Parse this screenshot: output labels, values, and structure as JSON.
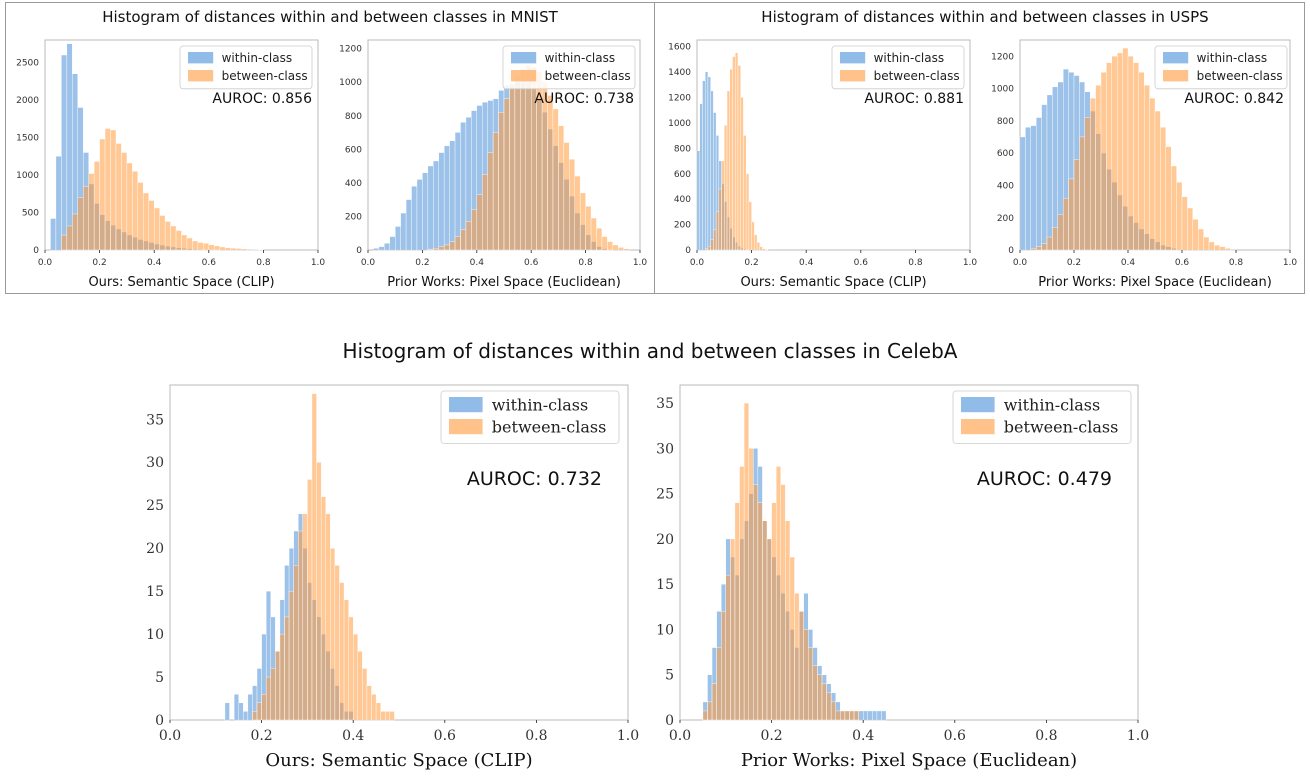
{
  "colors": {
    "within": "#4a90d9",
    "between": "#ff9a3c",
    "axis": "#222222",
    "tick_label": "#333333"
  },
  "chart_data": [
    {
      "type": "bar",
      "group_title": "Histogram of distances within and between classes in MNIST",
      "title": "",
      "xlabel": "Ours: Semantic Space (CLIP)",
      "ylabel": "",
      "xlim": [
        0,
        1
      ],
      "ylim": [
        0,
        2800
      ],
      "xticks": [
        0.0,
        0.2,
        0.4,
        0.6,
        0.8,
        1.0
      ],
      "xtick_labels": [
        "0.0",
        "0.2",
        "0.4",
        "0.6",
        "0.8",
        "1.0"
      ],
      "yticks": [
        0,
        500,
        1000,
        1500,
        2000,
        2500
      ],
      "ytick_labels": [
        "0",
        "500",
        "1000",
        "1500",
        "2000",
        "2500"
      ],
      "legend": {
        "placement": "top-right",
        "entries": [
          "within-class",
          "between-class"
        ]
      },
      "annotation": "AUROC: 0.856",
      "bin_width": 0.02,
      "x_start": 0.0,
      "series": [
        {
          "name": "within-class",
          "values": [
            0,
            420,
            1250,
            2600,
            2750,
            2350,
            1900,
            1300,
            880,
            620,
            470,
            390,
            330,
            280,
            240,
            200,
            170,
            140,
            120,
            100,
            80,
            65,
            50,
            40,
            30,
            22,
            16,
            12,
            8,
            5,
            3,
            2
          ]
        },
        {
          "name": "between-class",
          "values": [
            0,
            0,
            0,
            200,
            320,
            480,
            700,
            850,
            1020,
            1180,
            1480,
            1620,
            1600,
            1420,
            1300,
            1160,
            1050,
            900,
            760,
            660,
            560,
            460,
            380,
            320,
            260,
            200,
            160,
            120,
            100,
            90,
            70,
            55,
            40,
            30,
            25,
            20,
            15,
            10,
            8,
            6
          ]
        }
      ]
    },
    {
      "type": "bar",
      "title": "",
      "xlabel": "Prior Works: Pixel Space (Euclidean)",
      "ylabel": "",
      "xlim": [
        0,
        1
      ],
      "ylim": [
        0,
        1250
      ],
      "xticks": [
        0.0,
        0.2,
        0.4,
        0.6,
        0.8,
        1.0
      ],
      "xtick_labels": [
        "0.0",
        "0.2",
        "0.4",
        "0.6",
        "0.8",
        "1.0"
      ],
      "yticks": [
        0,
        200,
        400,
        600,
        800,
        1000,
        1200
      ],
      "ytick_labels": [
        "0",
        "200",
        "400",
        "600",
        "800",
        "1000",
        "1200"
      ],
      "legend": {
        "placement": "top-right",
        "entries": [
          "within-class",
          "between-class"
        ]
      },
      "annotation": "AUROC: 0.738",
      "bin_width": 0.02,
      "x_start": 0.0,
      "series": [
        {
          "name": "within-class",
          "values": [
            0,
            10,
            20,
            40,
            80,
            140,
            220,
            300,
            380,
            420,
            460,
            500,
            530,
            580,
            620,
            650,
            700,
            760,
            790,
            830,
            860,
            880,
            890,
            900,
            950,
            980,
            990,
            1000,
            1000,
            990,
            960,
            900,
            820,
            720,
            620,
            520,
            420,
            320,
            220,
            150,
            90,
            50,
            20,
            8,
            3
          ]
        },
        {
          "name": "between-class",
          "values": [
            0,
            0,
            0,
            0,
            0,
            0,
            0,
            0,
            0,
            0,
            0,
            5,
            10,
            20,
            30,
            50,
            80,
            120,
            170,
            240,
            330,
            450,
            580,
            700,
            820,
            900,
            980,
            1040,
            1080,
            1100,
            1090,
            1060,
            1000,
            920,
            840,
            740,
            640,
            540,
            440,
            340,
            260,
            190,
            130,
            80,
            50,
            30,
            15,
            8
          ]
        }
      ]
    },
    {
      "type": "bar",
      "group_title": "Histogram of distances within and between classes in USPS",
      "title": "",
      "xlabel": "Ours: Semantic Space (CLIP)",
      "ylabel": "",
      "xlim": [
        0,
        1
      ],
      "ylim": [
        0,
        1650
      ],
      "xticks": [
        0.0,
        0.2,
        0.4,
        0.6,
        0.8,
        1.0
      ],
      "xtick_labels": [
        "0.0",
        "0.2",
        "0.4",
        "0.6",
        "0.8",
        "1.0"
      ],
      "yticks": [
        0,
        200,
        400,
        600,
        800,
        1000,
        1200,
        1400,
        1600
      ],
      "ytick_labels": [
        "0",
        "200",
        "400",
        "600",
        "800",
        "1000",
        "1200",
        "1400",
        "1600"
      ],
      "legend": {
        "placement": "top-right",
        "entries": [
          "within-class",
          "between-class"
        ]
      },
      "annotation": "AUROC: 0.881",
      "bin_width": 0.01,
      "x_start": 0.0,
      "series": [
        {
          "name": "within-class",
          "values": [
            780,
            1150,
            1330,
            1400,
            1360,
            1250,
            1080,
            900,
            700,
            520,
            380,
            260,
            170,
            100,
            60,
            30,
            15,
            8,
            3
          ]
        },
        {
          "name": "between-class",
          "values": [
            0,
            0,
            0,
            10,
            30,
            80,
            160,
            300,
            480,
            700,
            980,
            1250,
            1420,
            1520,
            1550,
            1450,
            1200,
            900,
            600,
            380,
            220,
            120,
            60,
            25,
            10,
            4
          ]
        }
      ]
    },
    {
      "type": "bar",
      "title": "",
      "xlabel": "Prior Works: Pixel Space (Euclidean)",
      "ylabel": "",
      "xlim": [
        0,
        1
      ],
      "ylim": [
        0,
        1300
      ],
      "xticks": [
        0.0,
        0.2,
        0.4,
        0.6,
        0.8,
        1.0
      ],
      "xtick_labels": [
        "0.0",
        "0.2",
        "0.4",
        "0.6",
        "0.8",
        "1.0"
      ],
      "yticks": [
        0,
        200,
        400,
        600,
        800,
        1000,
        1200
      ],
      "ytick_labels": [
        "0",
        "200",
        "400",
        "600",
        "800",
        "1000",
        "1200"
      ],
      "legend": {
        "placement": "top-right",
        "entries": [
          "within-class",
          "between-class"
        ]
      },
      "annotation": "AUROC: 0.842",
      "bin_width": 0.02,
      "x_start": 0.0,
      "series": [
        {
          "name": "within-class",
          "values": [
            700,
            760,
            770,
            820,
            900,
            960,
            1010,
            1040,
            1120,
            1100,
            1080,
            1040,
            980,
            860,
            720,
            600,
            500,
            420,
            340,
            270,
            210,
            170,
            130,
            100,
            70,
            50,
            30,
            20,
            10,
            5
          ]
        },
        {
          "name": "between-class",
          "values": [
            0,
            0,
            10,
            20,
            40,
            80,
            140,
            220,
            320,
            440,
            560,
            700,
            820,
            940,
            1020,
            1100,
            1160,
            1200,
            1220,
            1250,
            1200,
            1160,
            1100,
            1020,
            940,
            860,
            760,
            640,
            520,
            420,
            330,
            260,
            190,
            130,
            80,
            50,
            30,
            20,
            10,
            5
          ]
        }
      ]
    },
    {
      "type": "bar",
      "group_title": "Histogram of distances within and between classes in CelebA",
      "title": "",
      "xlabel": "Ours: Semantic Space (CLIP)",
      "ylabel": "",
      "xlim": [
        0,
        1
      ],
      "ylim": [
        0,
        39
      ],
      "xticks": [
        0.0,
        0.2,
        0.4,
        0.6,
        0.8,
        1.0
      ],
      "xtick_labels": [
        "0.0",
        "0.2",
        "0.4",
        "0.6",
        "0.8",
        "1.0"
      ],
      "yticks": [
        0,
        5,
        10,
        15,
        20,
        25,
        30,
        35
      ],
      "ytick_labels": [
        "0",
        "5",
        "10",
        "15",
        "20",
        "25",
        "30",
        "35"
      ],
      "legend": {
        "placement": "top-right",
        "entries": [
          "within-class",
          "between-class"
        ]
      },
      "annotation": "AUROC: 0.732",
      "bin_width": 0.01,
      "x_start": 0.12,
      "series": [
        {
          "name": "within-class",
          "values": [
            2,
            0,
            3,
            2,
            1,
            3,
            4,
            6,
            10,
            15,
            12,
            8,
            14,
            18,
            20,
            22,
            24,
            20,
            16,
            14,
            12,
            10,
            8,
            6,
            4,
            2,
            1,
            1
          ]
        },
        {
          "name": "between-class",
          "values": [
            0,
            0,
            0,
            0,
            0,
            0,
            1,
            2,
            3,
            5,
            6,
            8,
            10,
            12,
            15,
            18,
            22,
            24,
            28,
            38,
            30,
            26,
            24,
            20,
            18,
            16,
            14,
            12,
            10,
            8,
            6,
            4,
            3,
            2,
            1,
            1,
            1
          ]
        }
      ]
    },
    {
      "type": "bar",
      "title": "",
      "xlabel": "Prior Works: Pixel Space (Euclidean)",
      "ylabel": "",
      "xlim": [
        0,
        1
      ],
      "ylim": [
        0,
        37
      ],
      "xticks": [
        0.0,
        0.2,
        0.4,
        0.6,
        0.8,
        1.0
      ],
      "xtick_labels": [
        "0.0",
        "0.2",
        "0.4",
        "0.6",
        "0.8",
        "1.0"
      ],
      "yticks": [
        0,
        5,
        10,
        15,
        20,
        25,
        30,
        35
      ],
      "ytick_labels": [
        "0",
        "5",
        "10",
        "15",
        "20",
        "25",
        "30",
        "35"
      ],
      "legend": {
        "placement": "top-right",
        "entries": [
          "within-class",
          "between-class"
        ]
      },
      "annotation": "AUROC: 0.479",
      "bin_width": 0.01,
      "x_start": 0.05,
      "series": [
        {
          "name": "within-class",
          "values": [
            2,
            5,
            8,
            12,
            15,
            20,
            18,
            16,
            20,
            22,
            25,
            30,
            28,
            22,
            20,
            18,
            16,
            14,
            12,
            10,
            8,
            12,
            14,
            10,
            8,
            6,
            5,
            4,
            3,
            2,
            1,
            1,
            1,
            1,
            1,
            1,
            1,
            1,
            1,
            1
          ]
        },
        {
          "name": "between-class",
          "values": [
            1,
            2,
            4,
            8,
            12,
            16,
            20,
            24,
            28,
            35,
            30,
            26,
            24,
            22,
            20,
            24,
            28,
            26,
            22,
            18,
            14,
            12,
            10,
            8,
            6,
            5,
            4,
            3,
            2,
            1,
            1,
            1,
            1,
            1
          ]
        }
      ]
    }
  ]
}
